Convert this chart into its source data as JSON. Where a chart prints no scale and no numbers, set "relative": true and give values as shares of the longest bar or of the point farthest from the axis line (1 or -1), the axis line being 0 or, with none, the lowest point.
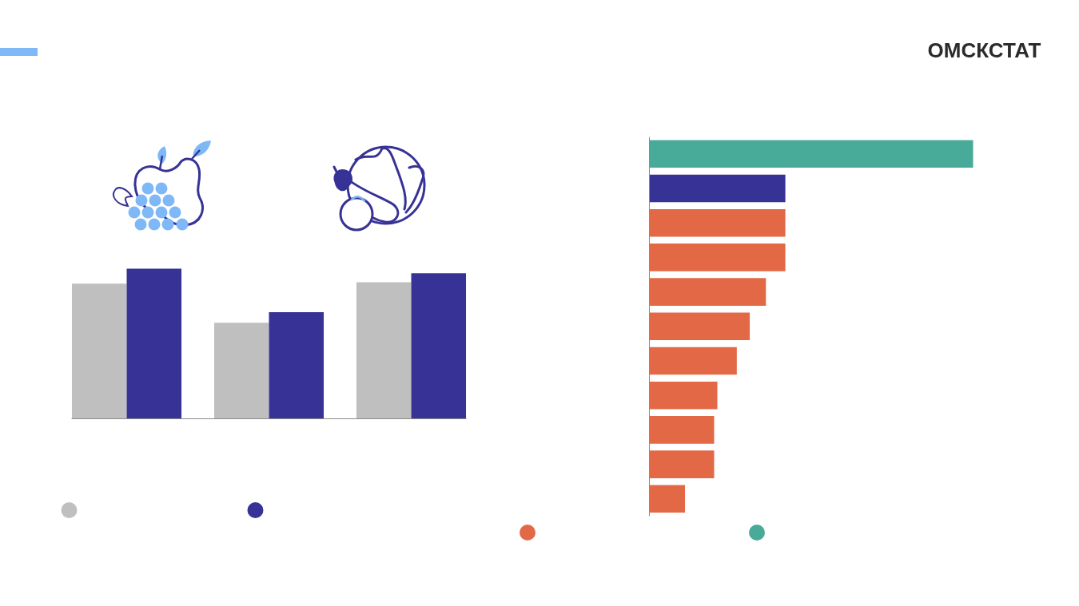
{
  "chart_data": [
    {
      "type": "bar",
      "relative": true,
      "categories": [
        null,
        null,
        null
      ],
      "series": [
        {
          "color": "#bfbfbf",
          "values": [
            0.9,
            0.64,
            0.91
          ]
        },
        {
          "color": "#373295",
          "values": [
            1,
            0.71,
            0.97
          ]
        }
      ]
    },
    {
      "type": "bar",
      "orientation": "horizontal",
      "stacked": true,
      "relative": true,
      "categories": [
        null,
        null,
        null,
        null,
        null,
        null,
        null,
        null,
        null,
        null,
        null
      ],
      "series": [
        {
          "color": "#e36846",
          "colors": [
            null,
            "#373295",
            "#e36846",
            "#e36846",
            "#e36846",
            "#e36846",
            "#e36846",
            "#e36846",
            "#e36846",
            "#e36846",
            "#e36846"
          ],
          "values": [
            null,
            0.42,
            0.42,
            0.42,
            0.36,
            0.31,
            0.27,
            0.21,
            0.2,
            0.2,
            0.11
          ]
        },
        {
          "color": "#48aa98",
          "values": [
            1,
            null,
            null,
            null,
            null,
            null,
            null,
            null,
            null,
            null,
            null
          ]
        }
      ],
      "annotations": [
        "ОМСКСТАТ"
      ]
    }
  ]
}
